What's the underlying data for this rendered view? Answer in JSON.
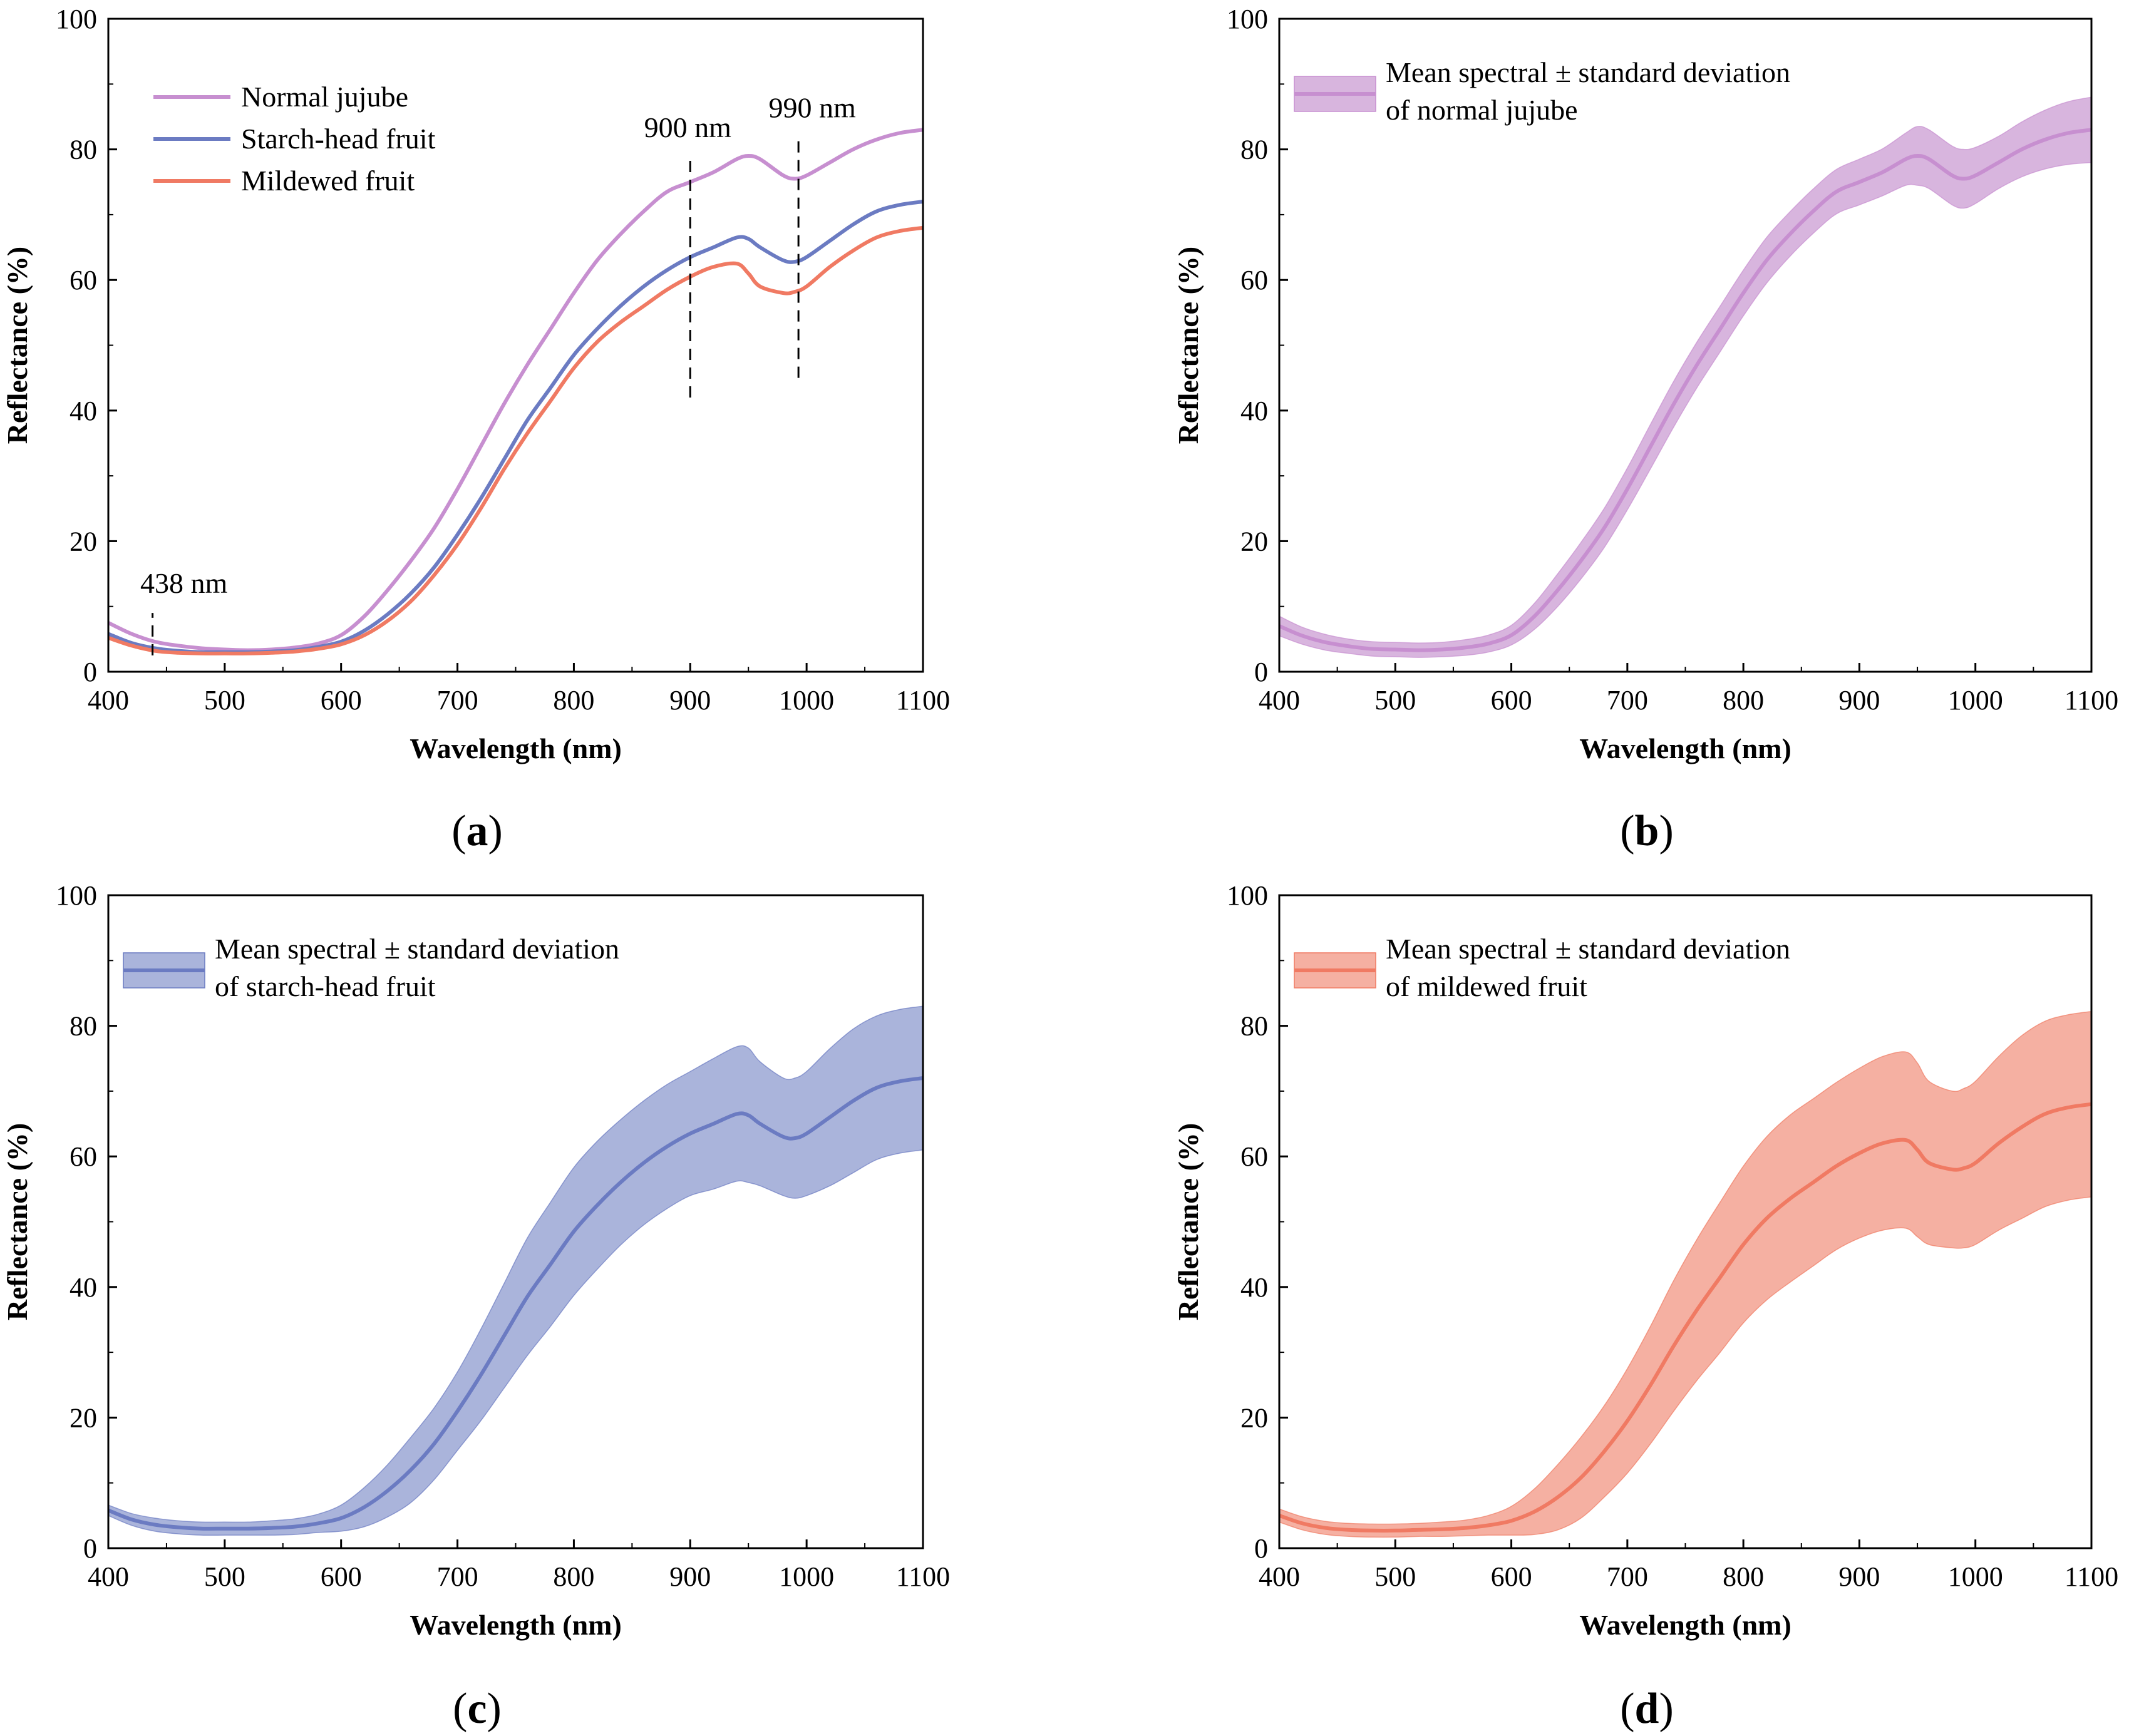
{
  "colors": {
    "normal": "#c78fd0",
    "starch": "#6b7bc2",
    "mildewed": "#f07a63",
    "band_normal": "#d8b5de",
    "band_starch": "#aab4db",
    "band_mildewed": "#f5b0a2"
  },
  "chart_data": [
    {
      "panel": "a",
      "caption": {
        "open": "(",
        "letter": "a",
        "close": ")"
      },
      "type": "line",
      "xlabel": "Wavelength (nm)",
      "ylabel": "Reflectance (%)",
      "xlim": [
        400,
        1100
      ],
      "ylim": [
        0,
        100
      ],
      "xticks": [
        "400",
        "500",
        "600",
        "700",
        "800",
        "900",
        "1000",
        "1100"
      ],
      "yticks": [
        "0",
        "20",
        "40",
        "60",
        "80",
        "100"
      ],
      "x": [
        400,
        420,
        440,
        460,
        480,
        500,
        520,
        540,
        560,
        580,
        600,
        620,
        640,
        660,
        680,
        700,
        720,
        740,
        760,
        780,
        800,
        820,
        840,
        860,
        880,
        900,
        920,
        940,
        950,
        960,
        980,
        990,
        1000,
        1020,
        1040,
        1060,
        1080,
        1100
      ],
      "series": [
        {
          "name": "Normal jujube",
          "color_key": "normal",
          "values": [
            7.5,
            5.8,
            4.6,
            4.0,
            3.6,
            3.4,
            3.3,
            3.4,
            3.7,
            4.3,
            5.6,
            8.5,
            12.5,
            17.0,
            22.0,
            28.0,
            34.5,
            41.0,
            47.0,
            52.5,
            58.0,
            63.0,
            67.0,
            70.5,
            73.5,
            75.0,
            76.5,
            78.5,
            79.0,
            78.5,
            76.0,
            75.5,
            76.0,
            78.0,
            80.0,
            81.5,
            82.5,
            83.0
          ]
        },
        {
          "name": "Starch-head fruit",
          "color_key": "starch",
          "values": [
            5.8,
            4.4,
            3.6,
            3.2,
            3.0,
            3.0,
            3.0,
            3.1,
            3.3,
            3.8,
            4.6,
            6.3,
            8.8,
            12.0,
            16.0,
            21.0,
            26.5,
            32.5,
            38.5,
            43.5,
            48.5,
            52.5,
            56.0,
            59.0,
            61.5,
            63.5,
            65.0,
            66.5,
            66.3,
            65.0,
            63.0,
            62.8,
            63.5,
            66.0,
            68.5,
            70.5,
            71.5,
            72.0
          ]
        },
        {
          "name": "Mildewed fruit",
          "color_key": "mildewed",
          "values": [
            5.2,
            4.0,
            3.2,
            2.9,
            2.8,
            2.8,
            2.8,
            2.9,
            3.1,
            3.5,
            4.2,
            5.6,
            7.8,
            10.8,
            14.8,
            19.5,
            25.0,
            31.0,
            36.5,
            41.5,
            46.5,
            50.5,
            53.5,
            56.0,
            58.5,
            60.5,
            62.0,
            62.5,
            61.0,
            59.0,
            58.0,
            58.2,
            59.0,
            62.0,
            64.5,
            66.5,
            67.5,
            68.0
          ]
        }
      ],
      "annotations": [
        {
          "label": "438 nm",
          "x": 438,
          "y_from": 2.5,
          "y_to": 9
        },
        {
          "label": "900 nm",
          "x": 900,
          "y_from": 42,
          "y_to": 79
        },
        {
          "label": "990 nm",
          "x": 993,
          "y_from": 45,
          "y_to": 82
        }
      ],
      "legend": {
        "position": "top-left"
      }
    },
    {
      "panel": "b",
      "caption": {
        "open": "(",
        "letter": "b",
        "close": ")"
      },
      "type": "area",
      "xlabel": "Wavelength (nm)",
      "ylabel": "Reflectance (%)",
      "xlim": [
        400,
        1100
      ],
      "ylim": [
        0,
        100
      ],
      "xticks": [
        "400",
        "500",
        "600",
        "700",
        "800",
        "900",
        "1000",
        "1100"
      ],
      "yticks": [
        "0",
        "20",
        "40",
        "60",
        "80",
        "100"
      ],
      "legend_lines": [
        "Mean spectral ± standard deviation",
        "of normal jujube"
      ],
      "legend": {
        "position": "top-left"
      },
      "color_key": "normal",
      "band_key": "band_normal",
      "x": [
        400,
        420,
        440,
        460,
        480,
        500,
        520,
        540,
        560,
        580,
        600,
        620,
        640,
        660,
        680,
        700,
        720,
        740,
        760,
        780,
        800,
        820,
        840,
        860,
        880,
        900,
        920,
        940,
        950,
        960,
        980,
        990,
        1000,
        1020,
        1040,
        1060,
        1080,
        1100
      ],
      "mean": [
        7.0,
        5.5,
        4.5,
        3.9,
        3.5,
        3.4,
        3.3,
        3.4,
        3.7,
        4.3,
        5.6,
        8.5,
        12.5,
        17.0,
        22.0,
        28.0,
        34.5,
        41.0,
        47.0,
        52.5,
        58.0,
        63.0,
        67.0,
        70.5,
        73.5,
        75.0,
        76.5,
        78.5,
        79.0,
        78.5,
        76.0,
        75.5,
        76.0,
        78.0,
        80.0,
        81.5,
        82.5,
        83.0
      ],
      "std": [
        1.5,
        1.3,
        1.2,
        1.1,
        1.1,
        1.1,
        1.1,
        1.1,
        1.2,
        1.3,
        1.5,
        2.0,
        2.5,
        2.8,
        3.0,
        3.2,
        3.4,
        3.5,
        3.5,
        3.5,
        3.5,
        3.5,
        3.4,
        3.4,
        3.4,
        3.5,
        3.6,
        4.0,
        4.5,
        4.5,
        4.5,
        4.5,
        4.3,
        4.0,
        4.2,
        4.5,
        4.8,
        5.0
      ]
    },
    {
      "panel": "c",
      "caption": {
        "open": "(",
        "letter": "c",
        "close": ")"
      },
      "type": "area",
      "xlabel": "Wavelength (nm)",
      "ylabel": "Reflectance (%)",
      "xlim": [
        400,
        1100
      ],
      "ylim": [
        0,
        100
      ],
      "xticks": [
        "400",
        "500",
        "600",
        "700",
        "800",
        "900",
        "1000",
        "1100"
      ],
      "yticks": [
        "0",
        "20",
        "40",
        "60",
        "80",
        "100"
      ],
      "legend_lines": [
        "Mean spectral ± standard deviation",
        "of starch-head fruit"
      ],
      "legend": {
        "position": "top-left"
      },
      "color_key": "starch",
      "band_key": "band_starch",
      "x": [
        400,
        420,
        440,
        460,
        480,
        500,
        520,
        540,
        560,
        580,
        600,
        620,
        640,
        660,
        680,
        700,
        720,
        740,
        760,
        780,
        800,
        820,
        840,
        860,
        880,
        900,
        920,
        940,
        950,
        960,
        980,
        990,
        1000,
        1020,
        1040,
        1060,
        1080,
        1100
      ],
      "mean": [
        5.8,
        4.4,
        3.6,
        3.2,
        3.0,
        3.0,
        3.0,
        3.1,
        3.3,
        3.8,
        4.6,
        6.3,
        8.8,
        12.0,
        16.0,
        21.0,
        26.5,
        32.5,
        38.5,
        43.5,
        48.5,
        52.5,
        56.0,
        59.0,
        61.5,
        63.5,
        65.0,
        66.5,
        66.3,
        65.0,
        63.0,
        62.8,
        63.5,
        66.0,
        68.5,
        70.5,
        71.5,
        72.0
      ],
      "std": [
        0.8,
        0.9,
        1.0,
        1.0,
        1.0,
        1.0,
        1.0,
        1.1,
        1.2,
        1.4,
        2.0,
        3.0,
        4.0,
        5.0,
        5.5,
        6.0,
        7.0,
        8.0,
        9.0,
        9.5,
        9.8,
        9.8,
        9.6,
        9.5,
        9.5,
        9.5,
        10.0,
        10.3,
        10.3,
        9.5,
        9.0,
        9.2,
        9.5,
        10.5,
        11.0,
        11.0,
        11.0,
        11.0
      ]
    },
    {
      "panel": "d",
      "caption": {
        "open": "(",
        "letter": "d",
        "close": ")"
      },
      "type": "area",
      "xlabel": "Wavelength (nm)",
      "ylabel": "Reflectance (%)",
      "xlim": [
        400,
        1100
      ],
      "ylim": [
        0,
        100
      ],
      "xticks": [
        "400",
        "500",
        "600",
        "700",
        "800",
        "900",
        "1000",
        "1100"
      ],
      "yticks": [
        "0",
        "20",
        "40",
        "60",
        "80",
        "100"
      ],
      "legend_lines": [
        "Mean spectral ± standard deviation",
        "of mildewed fruit"
      ],
      "legend": {
        "position": "top-left"
      },
      "color_key": "mildewed",
      "band_key": "band_mildewed",
      "x": [
        400,
        420,
        440,
        460,
        480,
        500,
        520,
        540,
        560,
        580,
        600,
        620,
        640,
        660,
        680,
        700,
        720,
        740,
        760,
        780,
        800,
        820,
        840,
        860,
        880,
        900,
        920,
        940,
        950,
        960,
        980,
        990,
        1000,
        1020,
        1040,
        1060,
        1080,
        1100
      ],
      "mean": [
        5.0,
        3.8,
        3.1,
        2.8,
        2.7,
        2.7,
        2.8,
        2.9,
        3.1,
        3.5,
        4.2,
        5.6,
        7.8,
        10.8,
        14.8,
        19.5,
        25.0,
        31.0,
        36.5,
        41.5,
        46.5,
        50.5,
        53.5,
        56.0,
        58.5,
        60.5,
        62.0,
        62.5,
        61.0,
        59.0,
        58.0,
        58.2,
        59.0,
        62.0,
        64.5,
        66.5,
        67.5,
        68.0
      ],
      "std": [
        1.0,
        1.0,
        1.0,
        1.0,
        1.0,
        1.0,
        1.0,
        1.1,
        1.2,
        1.5,
        2.2,
        3.5,
        5.0,
        6.2,
        7.0,
        8.0,
        9.0,
        10.0,
        10.8,
        11.5,
        12.0,
        12.5,
        12.8,
        12.8,
        12.8,
        13.0,
        13.3,
        13.5,
        13.3,
        12.5,
        12.0,
        12.2,
        12.5,
        13.3,
        14.0,
        14.2,
        14.2,
        14.2
      ]
    }
  ]
}
